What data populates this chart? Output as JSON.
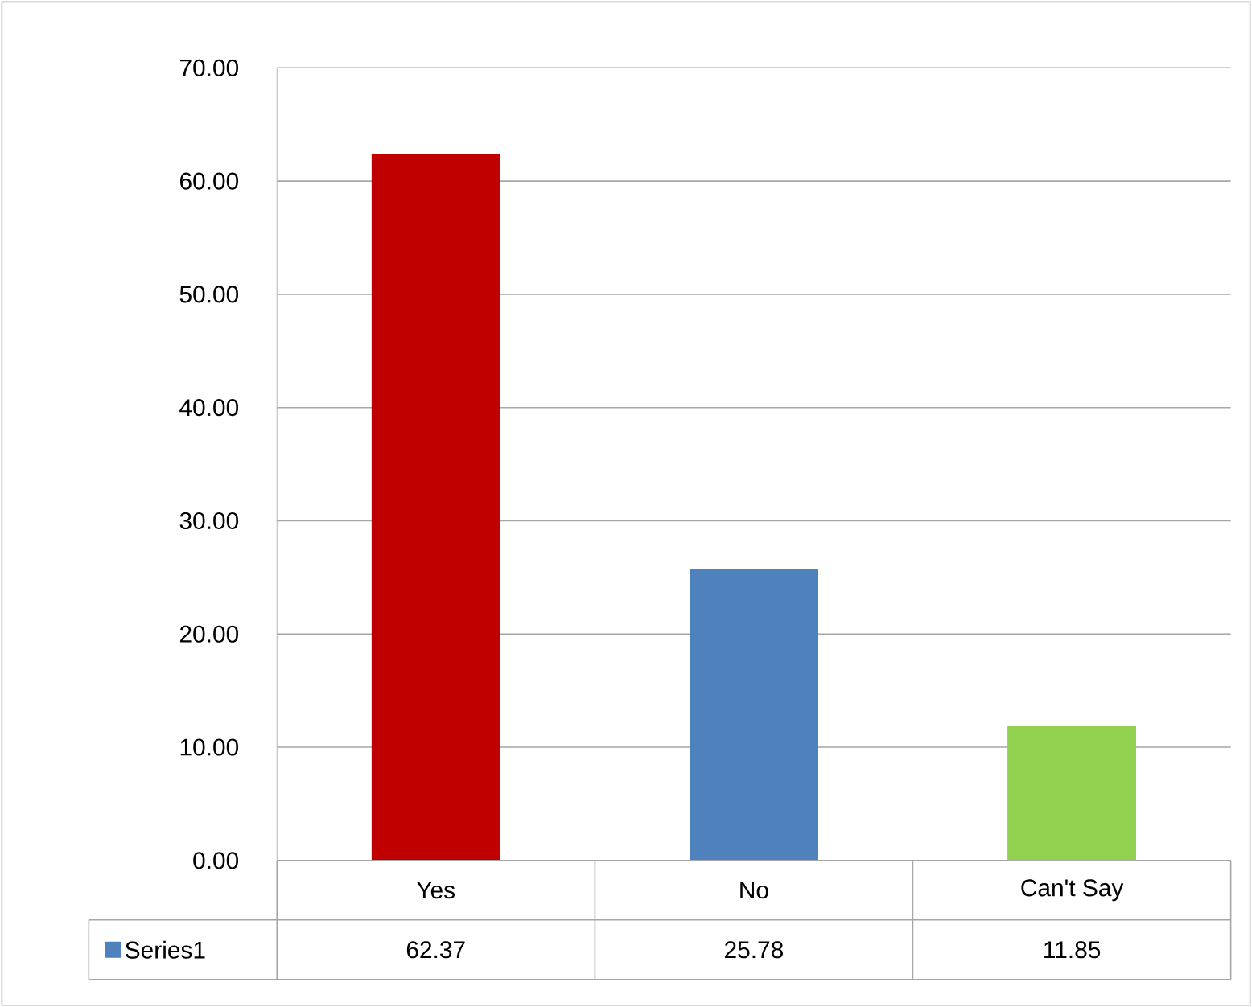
{
  "chart_data": {
    "type": "bar",
    "categories": [
      "Yes",
      "No",
      "Can't Say"
    ],
    "series": [
      {
        "name": "Series1",
        "color": "#4f81bd",
        "colors": [
          "#c00000",
          "#4f81bd",
          "#92d050"
        ],
        "values": [
          62.37,
          25.78,
          11.85
        ]
      }
    ],
    "ylim": [
      0,
      70
    ],
    "yticks": [
      {
        "value": 0,
        "label": "0.00"
      },
      {
        "value": 10,
        "label": "10.00"
      },
      {
        "value": 20,
        "label": "20.00"
      },
      {
        "value": 30,
        "label": "30.00"
      },
      {
        "value": 40,
        "label": "40.00"
      },
      {
        "value": 50,
        "label": "50.00"
      },
      {
        "value": 60,
        "label": "60.00"
      },
      {
        "value": 70,
        "label": "70.00"
      }
    ],
    "grid": "y",
    "data_labels": true,
    "legend": "bottom left"
  }
}
